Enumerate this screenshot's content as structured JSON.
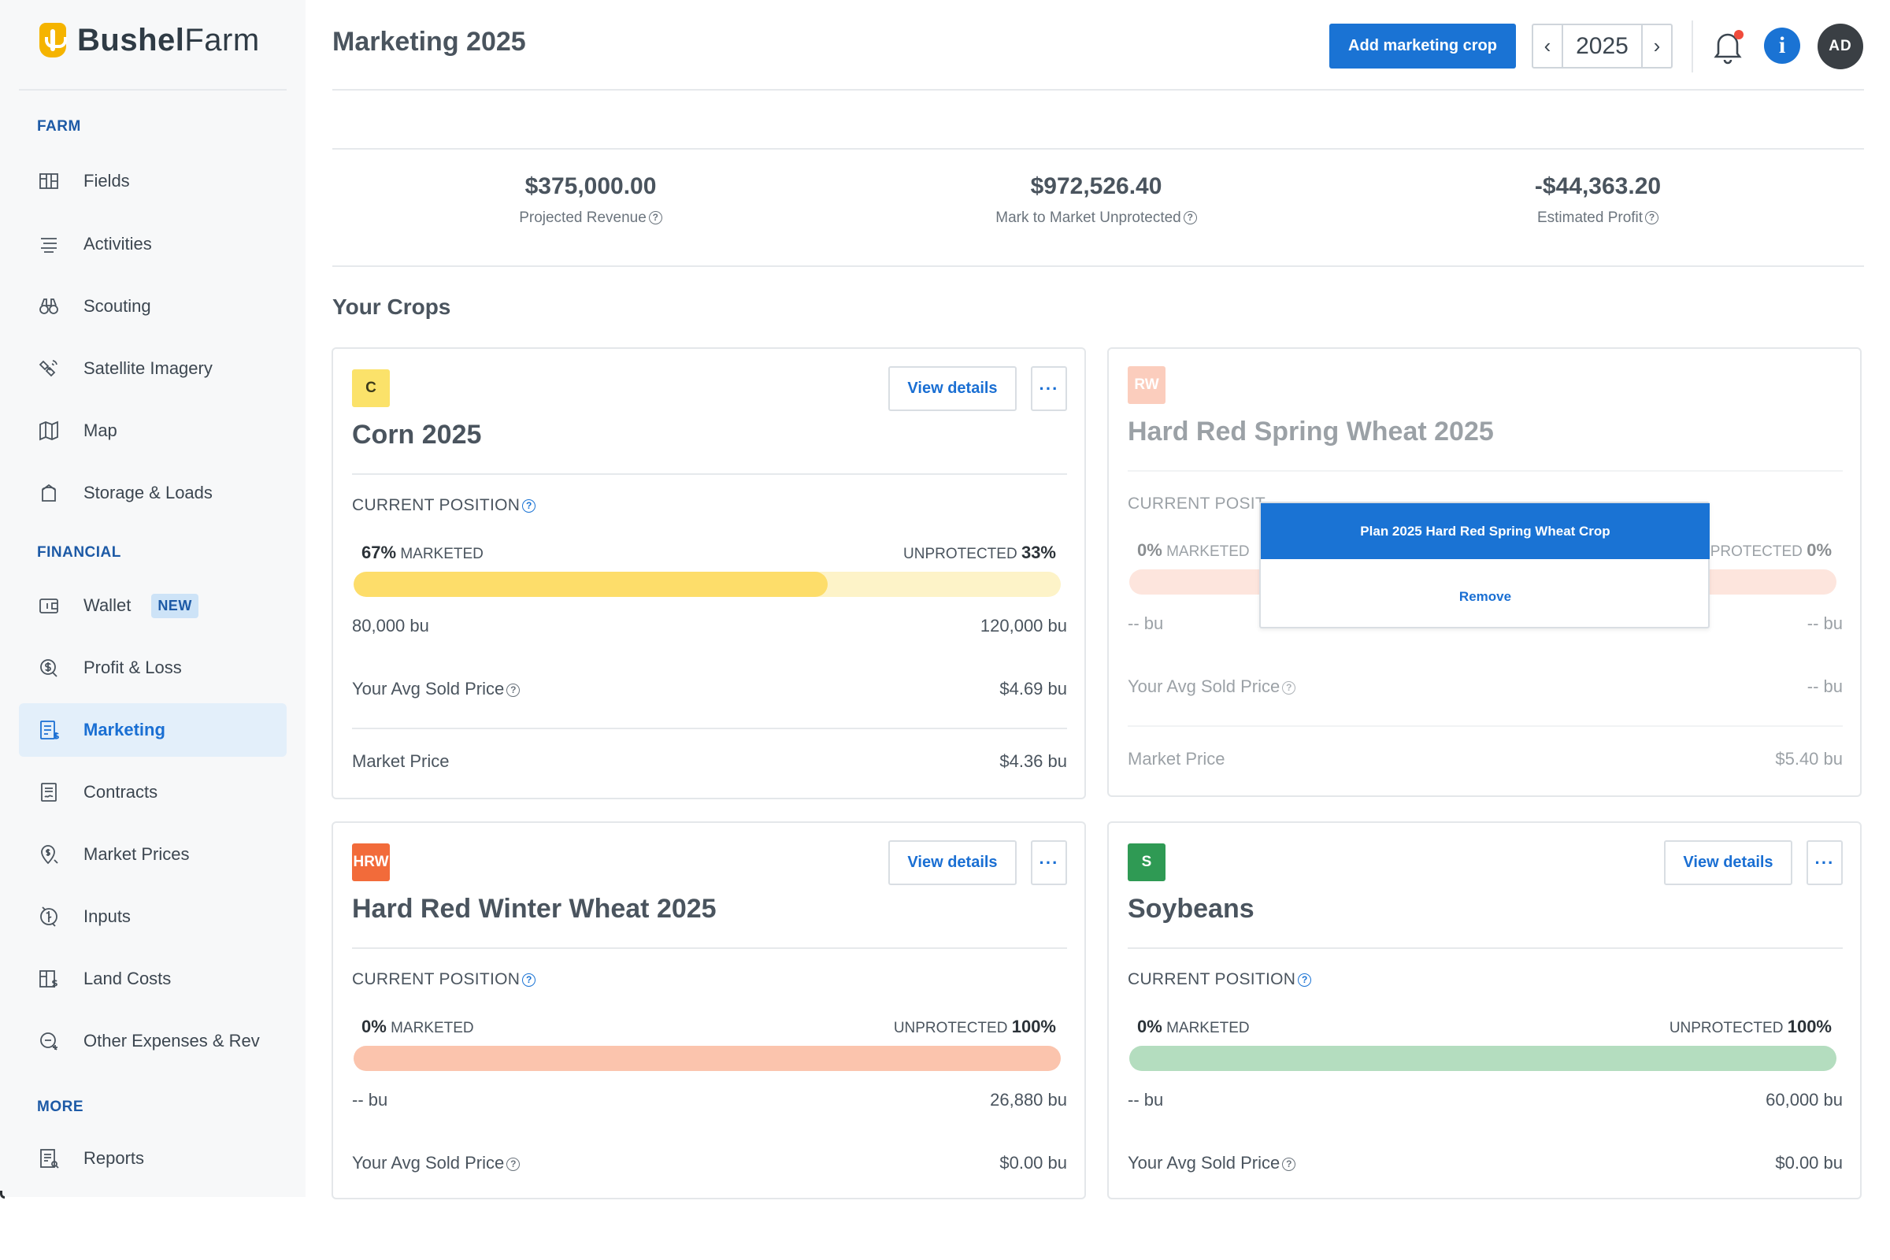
{
  "brand": {
    "name_bold": "Bushel",
    "name_light": "Farm"
  },
  "header": {
    "title": "Marketing 2025",
    "add_button": "Add marketing crop",
    "year": "2025",
    "prev_icon": "chevron-left-icon",
    "next_icon": "chevron-right-icon",
    "info_glyph": "i",
    "avatar_initials": "AD"
  },
  "sidebar": {
    "sections": [
      {
        "title": "FARM"
      },
      {
        "title": "FINANCIAL"
      },
      {
        "title": "MORE"
      }
    ],
    "items": [
      {
        "label": "Fields",
        "icon": "fields-icon"
      },
      {
        "label": "Activities",
        "icon": "activities-icon"
      },
      {
        "label": "Scouting",
        "icon": "binoculars-icon"
      },
      {
        "label": "Satellite Imagery",
        "icon": "satellite-icon"
      },
      {
        "label": "Map",
        "icon": "map-icon"
      },
      {
        "label": "Storage & Loads",
        "icon": "storage-icon"
      },
      {
        "label": "Wallet",
        "icon": "wallet-icon",
        "badge": "NEW"
      },
      {
        "label": "Profit & Loss",
        "icon": "profit-loss-icon"
      },
      {
        "label": "Marketing",
        "icon": "marketing-icon",
        "active": true
      },
      {
        "label": "Contracts",
        "icon": "contracts-icon"
      },
      {
        "label": "Market Prices",
        "icon": "market-prices-icon"
      },
      {
        "label": "Inputs",
        "icon": "inputs-icon"
      },
      {
        "label": "Land Costs",
        "icon": "land-costs-icon"
      },
      {
        "label": "Other Expenses & Rev",
        "icon": "other-expenses-icon"
      },
      {
        "label": "Reports",
        "icon": "reports-icon"
      }
    ]
  },
  "summary": [
    {
      "value": "$375,000.00",
      "label": "Projected Revenue"
    },
    {
      "value": "$972,526.40",
      "label": "Mark to Market Unprotected"
    },
    {
      "value": "-$44,363.20",
      "label": "Estimated Profit"
    }
  ],
  "crops_heading": "Your Crops",
  "common": {
    "current_position": "CURRENT POSITION",
    "marketed": "MARKETED",
    "unprotected": "UNPROTECTED",
    "avg_sold_price": "Your Avg Sold Price",
    "market_price": "Market Price",
    "view_details": "View details",
    "more": "···"
  },
  "crops": [
    {
      "badge": "C",
      "badge_bg": "#fbe26a",
      "badge_fg": "#3c3a1a",
      "title": "Corn 2025",
      "marketed_pct": "67%",
      "unprotected_pct": "33%",
      "marketed_fraction": 0.67,
      "bar_fill": "#fddd6a",
      "bar_track": "#fdf3c8",
      "marketed_bu": "80,000 bu",
      "total_bu": "120,000 bu",
      "avg_sold_price": "$4.69 bu",
      "market_price": "$4.36 bu"
    },
    {
      "badge": "RW",
      "badge_bg": "#f7a487",
      "badge_fg": "#ffffff",
      "title": "Hard Red Spring Wheat 2025",
      "marketed_pct": "0%",
      "unprotected_pct": "0%",
      "marketed_fraction": 0,
      "bar_fill": "#fbd0c2",
      "bar_track": "#fbd0c2",
      "marketed_bu": "-- bu",
      "total_bu": "-- bu",
      "avg_sold_price": "-- bu",
      "market_price": "$5.40 bu",
      "position_label_visible": "CURRENT POSIT",
      "unprotected_visible": "PROTECTED",
      "menu": {
        "primary": "Plan 2025 Hard Red Spring Wheat Crop",
        "secondary": "Remove"
      }
    },
    {
      "badge": "HRW",
      "badge_bg": "#f26b3a",
      "badge_fg": "#ffffff",
      "title": "Hard Red Winter Wheat 2025",
      "marketed_pct": "0%",
      "unprotected_pct": "100%",
      "marketed_fraction": 0,
      "bar_fill": "#fbc4ad",
      "bar_track": "#fbc4ad",
      "marketed_bu": "-- bu",
      "total_bu": "26,880 bu",
      "avg_sold_price": "$0.00 bu"
    },
    {
      "badge": "S",
      "badge_bg": "#2f9a54",
      "badge_fg": "#ffffff",
      "title": "Soybeans",
      "marketed_pct": "0%",
      "unprotected_pct": "100%",
      "marketed_fraction": 0,
      "bar_fill": "#b4ddbf",
      "bar_track": "#b4ddbf",
      "marketed_bu": "-- bu",
      "total_bu": "60,000 bu",
      "avg_sold_price": "$0.00 bu"
    }
  ],
  "colors": {
    "accent": "#1a73d4",
    "nav_section": "#1d5aa6"
  }
}
